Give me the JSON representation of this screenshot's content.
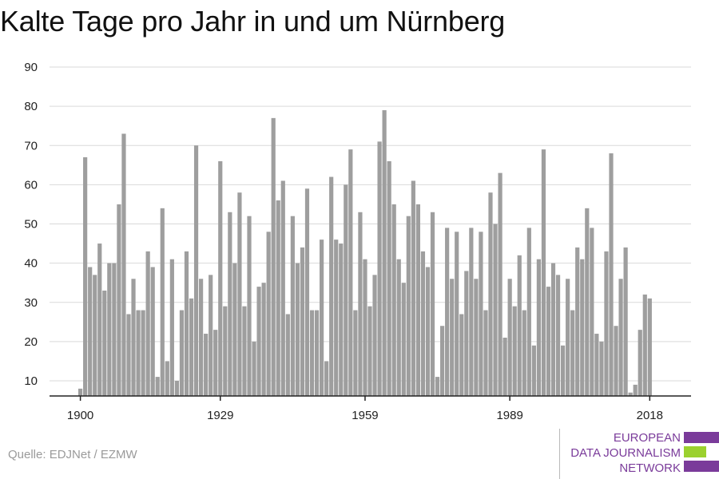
{
  "header": {
    "title": "Kalte Tage pro Jahr in und um Nürnberg"
  },
  "footer": {
    "source": "Quelle: EDJNet / EZMW"
  },
  "logo": {
    "line1": "EUROPEAN",
    "line2": "DATA JOURNALISM",
    "line3": "NETWORK",
    "color_purple": "#7a3b9a",
    "color_green": "#9bd12e"
  },
  "colors": {
    "bar": "#9e9e9e",
    "grid": "#d9d9d9",
    "axis": "#222222"
  },
  "chart_data": {
    "type": "bar",
    "title": "Kalte Tage pro Jahr in und um Nürnberg",
    "xlabel": "",
    "ylabel": "",
    "x_start": 1900,
    "x_end": 2018,
    "x_ticks": [
      1900,
      1929,
      1959,
      1989,
      2018
    ],
    "y_ticks": [
      10,
      20,
      30,
      40,
      50,
      60,
      70,
      80,
      90
    ],
    "ylim": [
      6,
      90
    ],
    "grid": true,
    "values": [
      8,
      67,
      39,
      37,
      45,
      33,
      40,
      40,
      55,
      73,
      27,
      36,
      28,
      28,
      43,
      39,
      11,
      54,
      15,
      41,
      10,
      28,
      43,
      31,
      70,
      36,
      22,
      37,
      23,
      66,
      29,
      53,
      40,
      58,
      29,
      52,
      20,
      34,
      35,
      48,
      77,
      56,
      61,
      27,
      52,
      40,
      44,
      59,
      28,
      28,
      46,
      15,
      62,
      46,
      45,
      60,
      69,
      28,
      53,
      41,
      29,
      37,
      71,
      79,
      66,
      55,
      41,
      35,
      52,
      61,
      55,
      43,
      39,
      53,
      11,
      24,
      49,
      36,
      48,
      27,
      38,
      49,
      36,
      48,
      28,
      58,
      50,
      63,
      21,
      36,
      29,
      42,
      28,
      49,
      19,
      41,
      69,
      34,
      40,
      37,
      19,
      36,
      28,
      44,
      41,
      54,
      49,
      22,
      20,
      43,
      68,
      24,
      36,
      44,
      7,
      9,
      23,
      32,
      31
    ]
  }
}
